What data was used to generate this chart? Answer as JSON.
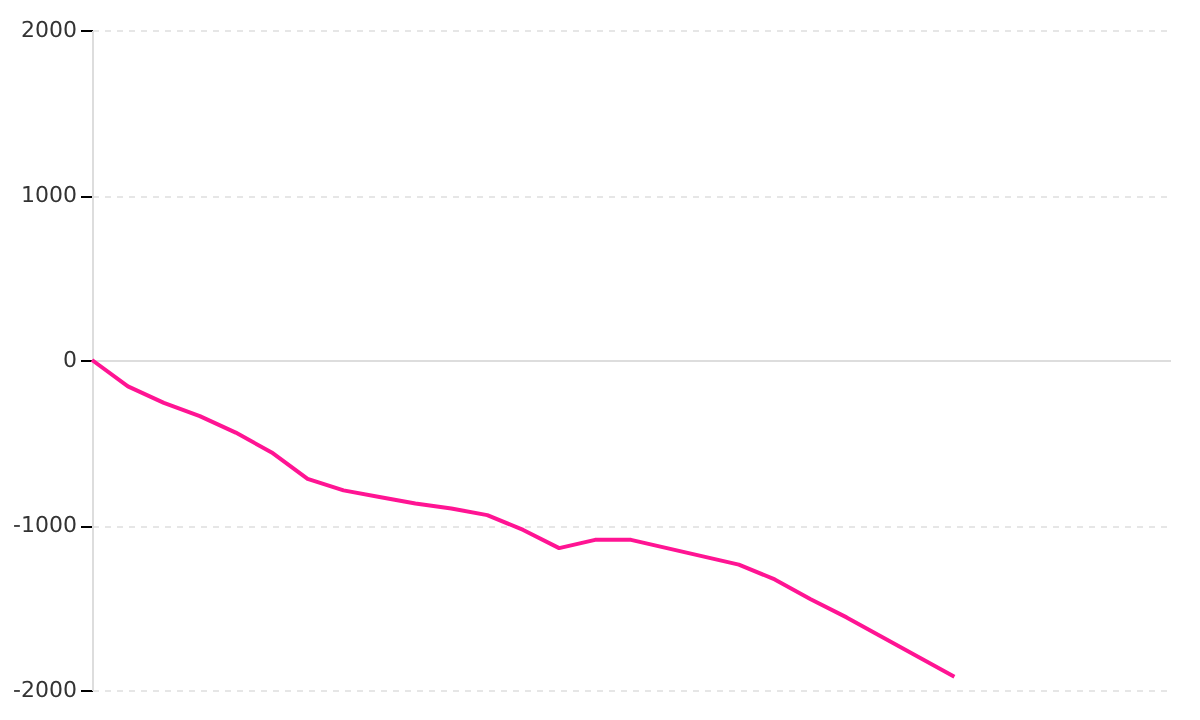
{
  "chart_data": {
    "type": "line",
    "categories": [
      null,
      null,
      null,
      null,
      null,
      null,
      null,
      null,
      null,
      null,
      null,
      null,
      null,
      null,
      null,
      null,
      null,
      null,
      null,
      null,
      null,
      null,
      null,
      null,
      null,
      null,
      null,
      null,
      null,
      null,
      null
    ],
    "series": [
      {
        "color": "#ff1493",
        "values": [
          0,
          -160,
          -260,
          -340,
          -440,
          -560,
          -720,
          -790,
          -830,
          -870,
          -900,
          -940,
          -1030,
          -1140,
          -1090,
          -1090,
          -1140,
          -1190,
          -1240,
          -1330,
          -1450,
          -1560,
          -1680,
          -1800,
          -1920,
          null,
          null,
          null,
          null,
          null,
          null
        ]
      }
    ],
    "ylim": [
      -2000,
      2000
    ],
    "yticks": [
      -2000,
      -1000,
      0,
      1000,
      2000
    ],
    "grid": "y",
    "tick_labels": "y",
    "marker": "none",
    "line_style": "solid"
  }
}
